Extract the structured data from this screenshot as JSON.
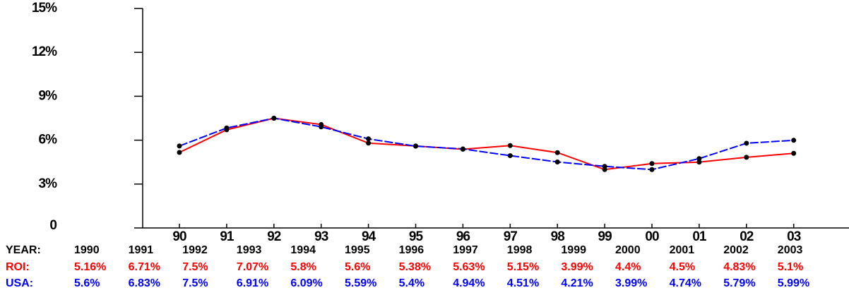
{
  "chart_data": {
    "type": "line",
    "categories": [
      "90",
      "91",
      "92",
      "93",
      "94",
      "95",
      "96",
      "97",
      "98",
      "99",
      "00",
      "01",
      "02",
      "03"
    ],
    "ylim": [
      0,
      15
    ],
    "yticks": [
      0,
      {
        "value": 3,
        "label": "3%"
      },
      {
        "value": 6,
        "label": "6%"
      },
      {
        "value": 9,
        "label": "9%"
      },
      {
        "value": 12,
        "label": "12%"
      },
      {
        "value": 15,
        "label": "15%"
      }
    ],
    "series": [
      {
        "name": "ROI:",
        "color": "#ff0000",
        "values": [
          5.16,
          6.71,
          7.5,
          7.07,
          5.8,
          5.6,
          5.38,
          5.63,
          5.15,
          3.99,
          4.4,
          4.5,
          4.83,
          5.1
        ],
        "value_labels": [
          "5.16%",
          "6.71%",
          "7.5%",
          "7.07%",
          "5.8%",
          "5.6%",
          "5.38%",
          "5.63%",
          "5.15%",
          "3.99%",
          "4.4%",
          "4.5%",
          "4.83%",
          "5.1%"
        ]
      },
      {
        "name": "USA:",
        "color": "#0000ff",
        "dashed": true,
        "values": [
          5.6,
          6.83,
          7.5,
          6.91,
          6.09,
          5.59,
          5.4,
          4.94,
          4.51,
          4.21,
          3.99,
          4.74,
          5.79,
          5.99
        ],
        "value_labels": [
          "5.6%",
          "6.83%",
          "7.5%",
          "6.91%",
          "6.09%",
          "5.59%",
          "5.4%",
          "4.94%",
          "4.51%",
          "4.21%",
          "3.99%",
          "4.74%",
          "5.79%",
          "5.99%"
        ]
      }
    ],
    "table": {
      "year_label": "YEAR:",
      "years": [
        "1990",
        "1991",
        "1992",
        "1993",
        "1994",
        "1995",
        "1996",
        "1997",
        "1998",
        "1999",
        "2000",
        "2001",
        "2002",
        "2003"
      ]
    }
  }
}
